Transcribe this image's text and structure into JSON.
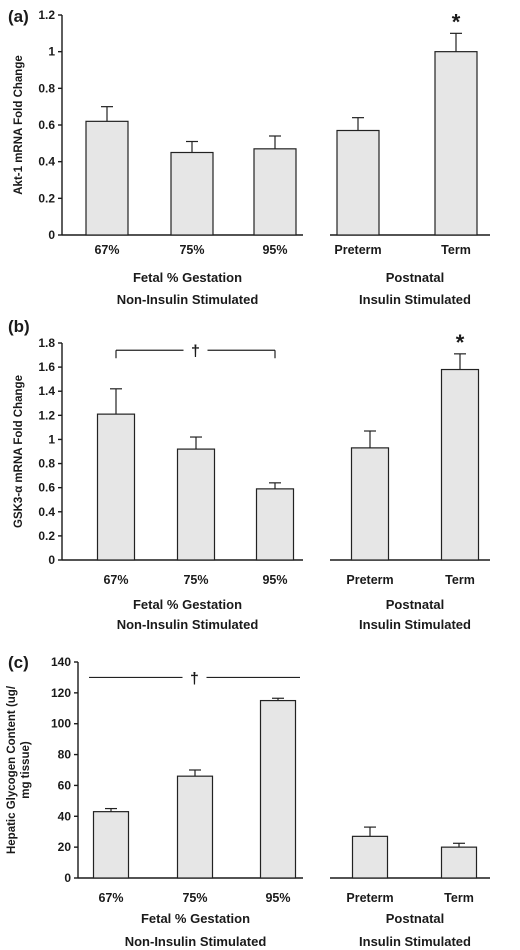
{
  "chart_data": [
    {
      "type": "bar",
      "panel_label": "(a)",
      "ylabel": "Akt-1 mRNA Fold Change",
      "ylim": [
        0,
        1.2
      ],
      "yticks": [
        "0",
        "0.2",
        "0.4",
        "0.6",
        "0.8",
        "1",
        "1.2"
      ],
      "groups": [
        {
          "categories": [
            "67%",
            "75%",
            "95%"
          ],
          "values": [
            0.62,
            0.45,
            0.47
          ],
          "errors": [
            0.08,
            0.06,
            0.07
          ],
          "label_line1": "Fetal % Gestation",
          "label_line2": "Non-Insulin Stimulated"
        },
        {
          "categories": [
            "Preterm",
            "Term"
          ],
          "values": [
            0.57,
            1.0
          ],
          "errors": [
            0.07,
            0.1
          ],
          "label_line1": "Postnatal",
          "label_line2": "Insulin Stimulated"
        }
      ],
      "annotations": [
        {
          "text": "*",
          "group": 1,
          "bar": 1
        }
      ]
    },
    {
      "type": "bar",
      "panel_label": "(b)",
      "ylabel": "GSK3-α mRNA Fold Change",
      "ylim": [
        0,
        1.8
      ],
      "yticks": [
        "0",
        "0.2",
        "0.4",
        "0.6",
        "0.8",
        "1",
        "1.2",
        "1.4",
        "1.6",
        "1.8"
      ],
      "groups": [
        {
          "categories": [
            "67%",
            "75%",
            "95%"
          ],
          "values": [
            1.21,
            0.92,
            0.59
          ],
          "errors": [
            0.21,
            0.1,
            0.05
          ],
          "label_line1": "Fetal % Gestation",
          "label_line2": "Non-Insulin Stimulated"
        },
        {
          "categories": [
            "Preterm",
            "Term"
          ],
          "values": [
            0.93,
            1.58
          ],
          "errors": [
            0.14,
            0.13
          ],
          "label_line1": "Postnatal",
          "label_line2": "Insulin Stimulated"
        }
      ],
      "annotations": [
        {
          "text": "*",
          "group": 1,
          "bar": 1
        }
      ],
      "bracket": {
        "text": "†",
        "group": 0,
        "from_bar": 0,
        "to_bar": 2,
        "y": 1.74
      }
    },
    {
      "type": "bar",
      "panel_label": "(c)",
      "ylabel": "Hepatic Glycogen Content (ug/ mg tissue)",
      "ylabel_lines": [
        "Hepatic Glycogen Content (ug/",
        "mg tissue)"
      ],
      "ylim": [
        0,
        140
      ],
      "yticks": [
        "0",
        "20",
        "40",
        "60",
        "80",
        "100",
        "120",
        "140"
      ],
      "groups": [
        {
          "categories": [
            "67%",
            "75%",
            "95%"
          ],
          "values": [
            43,
            66,
            115
          ],
          "errors": [
            2,
            4,
            1.5
          ],
          "label_line1": "Fetal % Gestation",
          "label_line2": "Non-Insulin Stimulated"
        },
        {
          "categories": [
            "Preterm",
            "Term"
          ],
          "values": [
            27,
            20
          ],
          "errors": [
            6,
            2.5
          ],
          "label_line1": "Postnatal",
          "label_line2": "Insulin Stimulated"
        }
      ],
      "annotations": [],
      "bracket": {
        "text": "†",
        "group": 0,
        "from_bar": 0,
        "to_bar": 2,
        "y": 130,
        "style": "line"
      }
    }
  ]
}
